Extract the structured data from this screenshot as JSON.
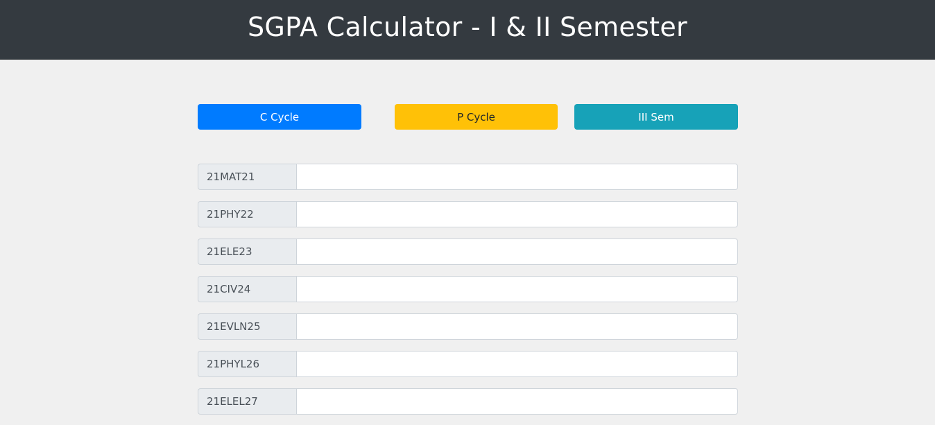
{
  "header": {
    "title": "SGPA Calculator - I & II Semester"
  },
  "buttons": {
    "c_cycle": "C Cycle",
    "p_cycle": "P Cycle",
    "iii_sem": "III Sem"
  },
  "subjects": [
    {
      "code": "21MAT21",
      "value": ""
    },
    {
      "code": "21PHY22",
      "value": ""
    },
    {
      "code": "21ELE23",
      "value": ""
    },
    {
      "code": "21CIV24",
      "value": ""
    },
    {
      "code": "21EVLN25",
      "value": ""
    },
    {
      "code": "21PHYL26",
      "value": ""
    },
    {
      "code": "21ELEL27",
      "value": ""
    }
  ]
}
